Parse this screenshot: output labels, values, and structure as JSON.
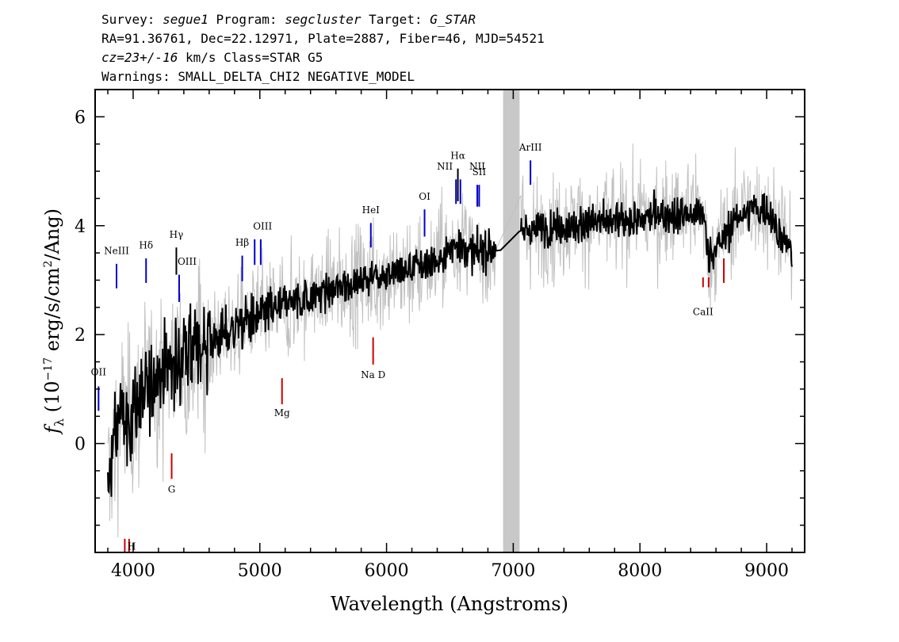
{
  "header": {
    "line1": [
      {
        "t": "Survey: ",
        "i": false
      },
      {
        "t": "segue1",
        "i": true
      },
      {
        "t": " Program: ",
        "i": false
      },
      {
        "t": "segcluster",
        "i": true
      },
      {
        "t": " Target: ",
        "i": false
      },
      {
        "t": "G_STAR",
        "i": true
      }
    ],
    "line2": "RA=91.36761, Dec=22.12971, Plate=2887, Fiber=46, MJD=54521",
    "line3": [
      {
        "t": "cz=23+/-16",
        "i": true
      },
      {
        "t": " km/s Class=STAR G5",
        "i": false
      }
    ],
    "line4": "Warnings: SMALL_DELTA_CHI2 NEGATIVE_MODEL"
  },
  "chart_data": {
    "type": "line",
    "xlabel": "Wavelength (Angstroms)",
    "ylabel": "f_λ (10^-17 erg/s/cm^2/Ang)",
    "ylabel_parts": {
      "f": "f",
      "sub": "λ",
      "mid": " (10",
      "sup1": "−17",
      "mid2": " erg/s/cm",
      "sup2": "2",
      "end": "/Ang)"
    },
    "xlim": [
      3700,
      9300
    ],
    "ylim": [
      -2.0,
      6.5
    ],
    "xticks": [
      4000,
      5000,
      6000,
      7000,
      8000,
      9000
    ],
    "xtick_labels": [
      "4000",
      "5000",
      "6000",
      "7000",
      "8000",
      "9000"
    ],
    "yticks": [
      0,
      2,
      4,
      6
    ],
    "ytick_labels": [
      "0",
      "2",
      "4",
      "6"
    ],
    "masked_region": [
      6920,
      7050
    ],
    "series": [
      {
        "role": "spectrum",
        "color": "#000000",
        "x": [
          3800,
          3850,
          3900,
          3950,
          4000,
          4100,
          4200,
          4300,
          4400,
          4500,
          4600,
          4700,
          4800,
          4900,
          5000,
          5100,
          5200,
          5400,
          5600,
          5800,
          6000,
          6200,
          6400,
          6560,
          6700,
          6900,
          7050,
          7300,
          7600,
          7900,
          8200,
          8500,
          8540,
          8800,
          9000,
          9200
        ],
        "y": [
          -0.8,
          0.0,
          0.6,
          0.4,
          0.5,
          1.0,
          1.3,
          1.45,
          1.55,
          1.7,
          1.85,
          2.0,
          2.1,
          2.25,
          2.35,
          2.45,
          2.55,
          2.7,
          2.85,
          3.0,
          3.1,
          3.2,
          3.35,
          3.7,
          3.5,
          3.55,
          3.9,
          3.95,
          4.05,
          4.1,
          4.2,
          4.25,
          3.4,
          4.25,
          4.3,
          3.5
        ],
        "noise_spread": 0.35
      },
      {
        "role": "error",
        "color": "#c0c0c0",
        "noise_spread": 0.9
      }
    ],
    "line_markers": [
      {
        "label": "OII",
        "x": 3727,
        "color": "#0000cc",
        "y0": 0.6,
        "y1": 1.05,
        "label_y": 1.25,
        "align": "middle"
      },
      {
        "label": "NeIII",
        "x": 3869,
        "color": "#0000cc",
        "y0": 2.85,
        "y1": 3.3,
        "label_y": 3.48,
        "align": "middle"
      },
      {
        "label": "Hδ",
        "x": 4102,
        "color": "#0000cc",
        "y0": 2.95,
        "y1": 3.4,
        "label_y": 3.58,
        "align": "middle"
      },
      {
        "label": "Hγ",
        "x": 4341,
        "color": "#000000",
        "y0": 3.1,
        "y1": 3.6,
        "label_y": 3.78,
        "align": "middle"
      },
      {
        "label": "OIII",
        "x": 4363,
        "color": "#0000cc",
        "y0": 2.6,
        "y1": 3.1,
        "label_y": 3.28,
        "align": "start"
      },
      {
        "label": "Hβ",
        "x": 4861,
        "color": "#0000cc",
        "y0": 2.98,
        "y1": 3.45,
        "label_y": 3.63,
        "align": "middle"
      },
      {
        "label": "OIII",
        "x": 4959,
        "color": "#0000cc",
        "y0": 3.28,
        "y1": 3.75,
        "label_y": 3.93,
        "align": "start"
      },
      {
        "label": "OIII",
        "x": 5007,
        "color": "#0000cc",
        "y0": 3.28,
        "y1": 3.75,
        "label_y": null,
        "align": "middle"
      },
      {
        "label": "HeI",
        "x": 5876,
        "color": "#0000cc",
        "y0": 3.6,
        "y1": 4.05,
        "label_y": 4.23,
        "align": "middle"
      },
      {
        "label": "OI",
        "x": 6300,
        "color": "#0000cc",
        "y0": 3.8,
        "y1": 4.3,
        "label_y": 4.48,
        "align": "middle"
      },
      {
        "label": "NII",
        "x": 6548,
        "color": "#0000cc",
        "y0": 4.4,
        "y1": 4.85,
        "label_y": 5.03,
        "align": "end"
      },
      {
        "label": "Hα",
        "x": 6563,
        "color": "#000000",
        "y0": 4.45,
        "y1": 5.05,
        "label_y": 5.23,
        "align": "middle"
      },
      {
        "label": "NII",
        "x": 6583,
        "color": "#0000cc",
        "y0": 4.4,
        "y1": 4.85,
        "label_y": null,
        "align": "middle"
      },
      {
        "label": "NII",
        "x": 6716,
        "color": "#0000cc",
        "y0": 4.35,
        "y1": 4.75,
        "label_y": 5.03,
        "align": "middle"
      },
      {
        "label": "SII",
        "x": 6731,
        "color": "#0000cc",
        "y0": 4.35,
        "y1": 4.75,
        "label_y": 4.93,
        "align": "middle"
      },
      {
        "label": "ArIII",
        "x": 7136,
        "color": "#0000cc",
        "y0": 4.75,
        "y1": 5.2,
        "label_y": 5.38,
        "align": "middle"
      },
      {
        "label": "H",
        "x": 3968,
        "color": "#cc0000",
        "y0": -2.3,
        "y1": -1.75,
        "label_y": -1.95,
        "align": "start"
      },
      {
        "label": "K",
        "x": 3934,
        "color": "#cc0000",
        "y0": -2.3,
        "y1": -1.75,
        "label_y": null,
        "align": "middle"
      },
      {
        "label": "G",
        "x": 4304,
        "color": "#cc0000",
        "y0": -0.65,
        "y1": -0.18,
        "label_y": -0.9,
        "align": "middle"
      },
      {
        "label": "Mg",
        "x": 5175,
        "color": "#cc0000",
        "y0": 0.72,
        "y1": 1.2,
        "label_y": 0.5,
        "align": "middle"
      },
      {
        "label": "Na D",
        "x": 5894,
        "color": "#cc0000",
        "y0": 1.45,
        "y1": 1.95,
        "label_y": 1.2,
        "align": "middle"
      },
      {
        "label": "CaII",
        "x": 8498,
        "color": "#cc0000",
        "y0": 2.87,
        "y1": 3.05,
        "label_y": 2.36,
        "align": "middle"
      },
      {
        "label": "CaII",
        "x": 8542,
        "color": "#cc0000",
        "y0": 2.87,
        "y1": 3.05,
        "label_y": null,
        "align": "middle"
      },
      {
        "label": "CaII",
        "x": 8662,
        "color": "#cc0000",
        "y0": 2.95,
        "y1": 3.4,
        "label_y": null,
        "align": "middle"
      }
    ]
  }
}
